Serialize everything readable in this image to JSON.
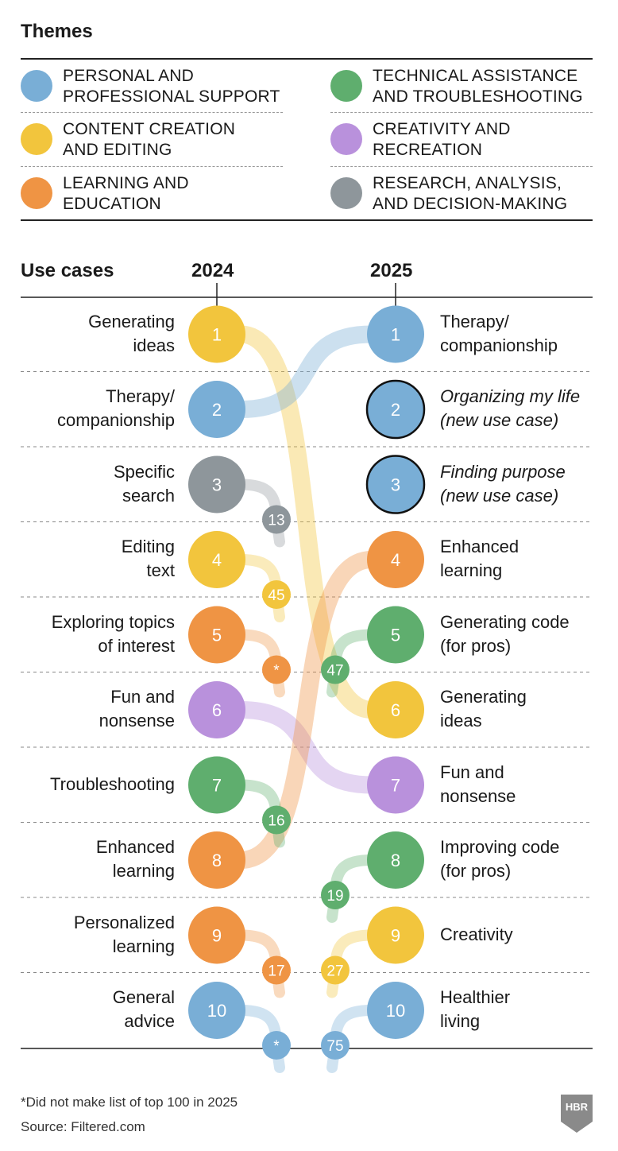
{
  "colors": {
    "blue": "#79aed6",
    "yellow": "#f2c53d",
    "orange": "#ef9444",
    "green": "#5fae6e",
    "purple": "#b991dc",
    "gray": "#8e969b"
  },
  "themes": {
    "title": "Themes",
    "items": [
      {
        "color_key": "blue",
        "line1": "PERSONAL AND",
        "line2": "PROFESSIONAL SUPPORT"
      },
      {
        "color_key": "green",
        "line1": "TECHNICAL ASSISTANCE",
        "line2": "AND TROUBLESHOOTING"
      },
      {
        "color_key": "yellow",
        "line1": "CONTENT CREATION",
        "line2": "AND EDITING"
      },
      {
        "color_key": "purple",
        "line1": "CREATIVITY AND",
        "line2": "RECREATION"
      },
      {
        "color_key": "orange",
        "line1": "LEARNING AND",
        "line2": "EDUCATION"
      },
      {
        "color_key": "gray",
        "line1": "RESEARCH, ANALYSIS,",
        "line2": "AND DECISION-MAKING"
      }
    ]
  },
  "header": {
    "use_cases": "Use cases",
    "year_left": "2024",
    "year_right": "2025"
  },
  "chart_data": {
    "type": "table",
    "title": "Use cases",
    "years": [
      "2024",
      "2025"
    ],
    "left": [
      {
        "rank": 1,
        "line1": "Generating",
        "line2": "ideas",
        "theme": "yellow",
        "new_rank_2025": 6
      },
      {
        "rank": 2,
        "line1": "Therapy/",
        "line2": "companionship",
        "theme": "blue",
        "new_rank_2025": 1
      },
      {
        "rank": 3,
        "line1": "Specific",
        "line2": "search",
        "theme": "gray",
        "new_rank_2025": "13"
      },
      {
        "rank": 4,
        "line1": "Editing",
        "line2": "text",
        "theme": "yellow",
        "new_rank_2025": "45"
      },
      {
        "rank": 5,
        "line1": "Exploring topics",
        "line2": "of interest",
        "theme": "orange",
        "new_rank_2025": "*"
      },
      {
        "rank": 6,
        "line1": "Fun and",
        "line2": "nonsense",
        "theme": "purple",
        "new_rank_2025": 7
      },
      {
        "rank": 7,
        "line1": "Troubleshooting",
        "line2": "",
        "theme": "green",
        "new_rank_2025": "16"
      },
      {
        "rank": 8,
        "line1": "Enhanced",
        "line2": "learning",
        "theme": "orange",
        "new_rank_2025": 4
      },
      {
        "rank": 9,
        "line1": "Personalized",
        "line2": "learning",
        "theme": "orange",
        "new_rank_2025": "17"
      },
      {
        "rank": 10,
        "line1": "General",
        "line2": "advice",
        "theme": "blue",
        "new_rank_2025": "*"
      }
    ],
    "right": [
      {
        "rank": 1,
        "line1": "Therapy/",
        "line2": "companionship",
        "theme": "blue",
        "old_rank_2024": 2,
        "is_new": false
      },
      {
        "rank": 2,
        "line1": "Organizing my life",
        "line2": "(new use case)",
        "theme": "blue",
        "old_rank_2024": null,
        "is_new": true
      },
      {
        "rank": 3,
        "line1": "Finding purpose",
        "line2": "(new use case)",
        "theme": "blue",
        "old_rank_2024": null,
        "is_new": true
      },
      {
        "rank": 4,
        "line1": "Enhanced",
        "line2": "learning",
        "theme": "orange",
        "old_rank_2024": 8,
        "is_new": false
      },
      {
        "rank": 5,
        "line1": "Generating code",
        "line2": "(for pros)",
        "theme": "green",
        "old_rank_2024": "47",
        "is_new": false
      },
      {
        "rank": 6,
        "line1": "Generating",
        "line2": "ideas",
        "theme": "yellow",
        "old_rank_2024": 1,
        "is_new": false
      },
      {
        "rank": 7,
        "line1": "Fun and",
        "line2": "nonsense",
        "theme": "purple",
        "old_rank_2024": 6,
        "is_new": false
      },
      {
        "rank": 8,
        "line1": "Improving code",
        "line2": "(for pros)",
        "theme": "green",
        "old_rank_2024": "19",
        "is_new": false
      },
      {
        "rank": 9,
        "line1": "Creativity",
        "line2": "",
        "theme": "yellow",
        "old_rank_2024": "27",
        "is_new": false
      },
      {
        "rank": 10,
        "line1": "Healthier",
        "line2": "living",
        "theme": "blue",
        "old_rank_2024": "75",
        "is_new": false
      }
    ]
  },
  "footer": {
    "note": "*Did not make list of top 100 in 2025",
    "source": "Source: Filtered.com",
    "logo_text": "HBR"
  }
}
